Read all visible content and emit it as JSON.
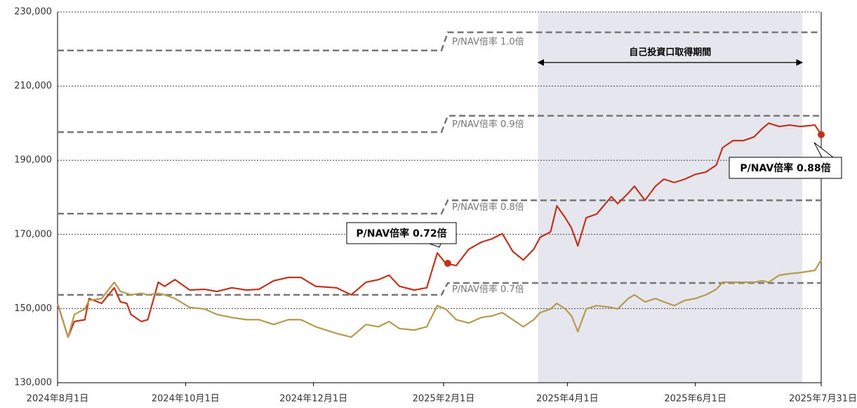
{
  "chart_data": {
    "type": "line",
    "x": [
      "2024-08-01",
      "2024-08-06",
      "2024-08-09",
      "2024-08-14",
      "2024-08-16",
      "2024-08-22",
      "2024-08-28",
      "2024-08-31",
      "2024-09-03",
      "2024-09-05",
      "2024-09-10",
      "2024-09-13",
      "2024-09-18",
      "2024-09-21",
      "2024-09-26",
      "2024-10-03",
      "2024-10-10",
      "2024-10-16",
      "2024-10-23",
      "2024-10-30",
      "2024-11-05",
      "2024-11-12",
      "2024-11-19",
      "2024-11-25",
      "2024-12-02",
      "2024-12-12",
      "2024-12-19",
      "2024-12-26",
      "2025-01-01",
      "2025-01-06",
      "2025-01-11",
      "2025-01-18",
      "2025-01-24",
      "2025-01-29",
      "2025-02-02",
      "2025-02-07",
      "2025-02-13",
      "2025-02-19",
      "2025-02-24",
      "2025-03-01",
      "2025-03-06",
      "2025-03-11",
      "2025-03-16",
      "2025-03-19",
      "2025-03-24",
      "2025-03-27",
      "2025-03-31",
      "2025-04-03",
      "2025-04-06",
      "2025-04-10",
      "2025-04-15",
      "2025-04-22",
      "2025-04-25",
      "2025-04-30",
      "2025-05-03",
      "2025-05-08",
      "2025-05-13",
      "2025-05-17",
      "2025-05-22",
      "2025-05-27",
      "2025-06-01",
      "2025-06-06",
      "2025-06-11",
      "2025-06-14",
      "2025-06-19",
      "2025-06-24",
      "2025-06-29",
      "2025-07-03",
      "2025-07-06",
      "2025-07-11",
      "2025-07-16",
      "2025-07-21",
      "2025-07-28",
      "2025-07-31"
    ],
    "series": [
      {
        "color": "#c0341d",
        "values": [
          151400,
          142300,
          146500,
          147000,
          152700,
          151400,
          155600,
          151800,
          151400,
          148400,
          146500,
          147000,
          157100,
          156000,
          157800,
          155000,
          155200,
          154600,
          155600,
          155000,
          155200,
          157500,
          158400,
          158400,
          156000,
          155600,
          153700,
          157100,
          157800,
          159000,
          156000,
          155000,
          155600,
          165000,
          162200,
          161600,
          166000,
          167900,
          168800,
          170200,
          165400,
          163100,
          166000,
          169200,
          170700,
          177700,
          174500,
          171700,
          166900,
          174500,
          175500,
          180200,
          178300,
          181100,
          183000,
          179200,
          183000,
          184900,
          184000,
          184900,
          186200,
          186800,
          188700,
          193400,
          195300,
          195300,
          196300,
          198600,
          200000,
          199100,
          199500,
          199100,
          199500,
          196900
        ]
      },
      {
        "color": "#b59a50",
        "values": [
          151400,
          142300,
          148400,
          149900,
          152200,
          152700,
          157100,
          154600,
          154100,
          153700,
          154100,
          153700,
          154100,
          153700,
          152700,
          150300,
          149900,
          148400,
          147600,
          147000,
          147000,
          145700,
          147000,
          147000,
          145100,
          143300,
          142300,
          145700,
          145100,
          146500,
          144600,
          144200,
          145100,
          150800,
          149900,
          147000,
          146100,
          147600,
          148000,
          148900,
          147000,
          145100,
          147000,
          148900,
          149900,
          151400,
          149900,
          148000,
          143800,
          149900,
          150800,
          150300,
          149900,
          152700,
          153700,
          151800,
          152700,
          151800,
          150800,
          152200,
          152700,
          153700,
          155200,
          157100,
          157100,
          157100,
          157100,
          157500,
          157100,
          159000,
          159400,
          159700,
          160300,
          163100
        ]
      }
    ],
    "reference_lines": [
      {
        "label": "P/NAV倍率 1.0倍",
        "x": [
          "2024-08-01",
          "2025-01-31",
          "2025-02-03",
          "2025-07-31"
        ],
        "values": [
          219600,
          219600,
          224500,
          224500
        ]
      },
      {
        "label": "P/NAV倍率 0.9倍",
        "x": [
          "2024-08-01",
          "2025-01-31",
          "2025-02-03",
          "2025-07-31"
        ],
        "values": [
          197600,
          197600,
          202000,
          202000
        ]
      },
      {
        "label": "P/NAV倍率 0.8倍",
        "x": [
          "2024-08-01",
          "2025-01-31",
          "2025-02-03",
          "2025-07-31"
        ],
        "values": [
          175600,
          175600,
          179200,
          179200
        ]
      },
      {
        "label": "P/NAV倍率 0.7倍",
        "x": [
          "2024-08-01",
          "2025-01-31",
          "2025-02-03",
          "2025-07-31"
        ],
        "values": [
          153700,
          153700,
          156900,
          156900
        ]
      }
    ],
    "shaded_period": {
      "label": "自己投資口取得期間",
      "start": "2025-03-18",
      "end": "2025-07-22"
    },
    "annotations": [
      {
        "text": "P/NAV倍率 0.72倍",
        "x": "2025-02-03",
        "y": 162200
      },
      {
        "text": "P/NAV倍率 0.88倍",
        "x": "2025-07-31",
        "y": 196900
      }
    ],
    "xlim": [
      "2024-08-01",
      "2025-07-31"
    ],
    "xticks": [
      {
        "value": "2024-08-01",
        "label": "2024年8月1日"
      },
      {
        "value": "2024-10-01",
        "label": "2024年10月1日"
      },
      {
        "value": "2024-12-01",
        "label": "2024年12月1日"
      },
      {
        "value": "2025-02-01",
        "label": "2025年2月1日"
      },
      {
        "value": "2025-04-01",
        "label": "2025年4月1日"
      },
      {
        "value": "2025-06-01",
        "label": "2025年6月1日"
      },
      {
        "value": "2025-07-31",
        "label": "2025年7月31日"
      }
    ],
    "ylim": [
      130000,
      230000
    ],
    "yticks": [
      {
        "value": 130000,
        "label": "130,000"
      },
      {
        "value": 150000,
        "label": "150,000"
      },
      {
        "value": 170000,
        "label": "170,000"
      },
      {
        "value": 190000,
        "label": "190,000"
      },
      {
        "value": 210000,
        "label": "210,000"
      },
      {
        "value": 230000,
        "label": "230,000"
      }
    ],
    "grid": true
  }
}
